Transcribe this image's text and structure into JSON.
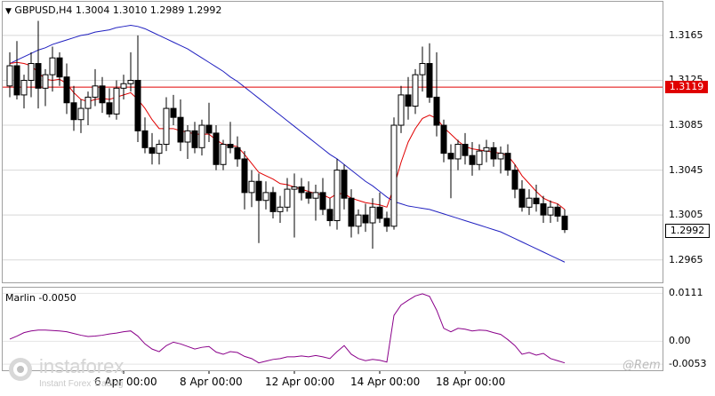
{
  "chart": {
    "symbol_header": "GBPUSD,H4  1.3004 1.3010 1.2989 1.2992",
    "indicator_header": "Marlin -0.0050",
    "price_axis": [
      "1.3165",
      "1.3125",
      "1.3085",
      "1.3045",
      "1.3005",
      "1.2965"
    ],
    "indicator_axis": [
      "0.0111",
      "0.00",
      "-0.0053"
    ],
    "current_price": "1.2992",
    "level_price": "1.3119",
    "date_labels": [
      "6 Apr 00:00",
      "8 Apr 00:00",
      "12 Apr 00:00",
      "14 Apr 00:00",
      "18 Apr 00:00"
    ],
    "colors": {
      "level": "#e00000",
      "ma_slow": "#2020c0",
      "ma_fast": "#e00000",
      "oscillator": "#8a008a",
      "bull": "#ffffff",
      "bear": "#000000"
    }
  },
  "branding": {
    "logo_name": "instaforex",
    "logo_tagline": "Instant Forex Trading",
    "watermark": "@Rem"
  },
  "chart_data": {
    "type": "candlestick",
    "timeframe": "H4",
    "price_range": [
      1.2945,
      1.3195
    ],
    "candles": [
      [
        1.312,
        1.315,
        1.311,
        1.3138
      ],
      [
        1.3138,
        1.316,
        1.3108,
        1.3112
      ],
      [
        1.3112,
        1.313,
        1.31,
        1.3125
      ],
      [
        1.3125,
        1.315,
        1.311,
        1.314
      ],
      [
        1.314,
        1.3178,
        1.31,
        1.3118
      ],
      [
        1.3118,
        1.3135,
        1.3102,
        1.313
      ],
      [
        1.313,
        1.3155,
        1.3115,
        1.3145
      ],
      [
        1.3145,
        1.315,
        1.312,
        1.3128
      ],
      [
        1.3128,
        1.314,
        1.3095,
        1.3105
      ],
      [
        1.3105,
        1.312,
        1.308,
        1.309
      ],
      [
        1.309,
        1.3108,
        1.3078,
        1.31
      ],
      [
        1.31,
        1.3115,
        1.3085,
        1.311
      ],
      [
        1.311,
        1.3135,
        1.3102,
        1.312
      ],
      [
        1.312,
        1.3128,
        1.3096,
        1.3105
      ],
      [
        1.3105,
        1.3118,
        1.3092,
        1.3095
      ],
      [
        1.3095,
        1.3125,
        1.309,
        1.3118
      ],
      [
        1.3118,
        1.313,
        1.3108,
        1.3122
      ],
      [
        1.3122,
        1.315,
        1.3115,
        1.3125
      ],
      [
        1.3125,
        1.3165,
        1.307,
        1.308
      ],
      [
        1.308,
        1.3092,
        1.306,
        1.3065
      ],
      [
        1.3065,
        1.3078,
        1.305,
        1.306
      ],
      [
        1.306,
        1.3072,
        1.305,
        1.3068
      ],
      [
        1.3068,
        1.311,
        1.3062,
        1.31
      ],
      [
        1.31,
        1.3112,
        1.3085,
        1.3092
      ],
      [
        1.3092,
        1.3108,
        1.3062,
        1.307
      ],
      [
        1.307,
        1.3085,
        1.3055,
        1.308
      ],
      [
        1.308,
        1.3088,
        1.306,
        1.3065
      ],
      [
        1.3065,
        1.309,
        1.3058,
        1.3085
      ],
      [
        1.3085,
        1.3105,
        1.307,
        1.3078
      ],
      [
        1.3078,
        1.3085,
        1.3045,
        1.305
      ],
      [
        1.305,
        1.3072,
        1.3045,
        1.3068
      ],
      [
        1.3068,
        1.3088,
        1.306,
        1.3065
      ],
      [
        1.3065,
        1.3075,
        1.3048,
        1.3055
      ],
      [
        1.3055,
        1.3062,
        1.301,
        1.3025
      ],
      [
        1.3025,
        1.3045,
        1.3012,
        1.3035
      ],
      [
        1.3035,
        1.3042,
        1.298,
        1.3018
      ],
      [
        1.3018,
        1.3035,
        1.301,
        1.3025
      ],
      [
        1.3025,
        1.303,
        1.3002,
        1.3008
      ],
      [
        1.3008,
        1.3022,
        1.2998,
        1.3012
      ],
      [
        1.3012,
        1.3038,
        1.3008,
        1.3028
      ],
      [
        1.3028,
        1.3042,
        1.2985,
        1.303
      ],
      [
        1.303,
        1.3038,
        1.3018,
        1.3025
      ],
      [
        1.3025,
        1.3035,
        1.3015,
        1.302
      ],
      [
        1.302,
        1.3032,
        1.3,
        1.3025
      ],
      [
        1.3025,
        1.3038,
        1.3005,
        1.301
      ],
      [
        1.301,
        1.302,
        1.2995,
        1.3
      ],
      [
        1.3,
        1.3055,
        1.2992,
        1.3045
      ],
      [
        1.3045,
        1.305,
        1.301,
        1.302
      ],
      [
        1.302,
        1.3028,
        1.2985,
        1.2995
      ],
      [
        1.2995,
        1.301,
        1.2988,
        1.3005
      ],
      [
        1.3005,
        1.3015,
        1.299,
        1.2998
      ],
      [
        1.2998,
        1.302,
        1.2975,
        1.3012
      ],
      [
        1.3012,
        1.3025,
        1.2998,
        1.3002
      ],
      [
        1.3002,
        1.3008,
        1.299,
        1.2995
      ],
      [
        1.2995,
        1.3092,
        1.2992,
        1.3085
      ],
      [
        1.3085,
        1.312,
        1.3078,
        1.3112
      ],
      [
        1.3112,
        1.3128,
        1.309,
        1.3102
      ],
      [
        1.3102,
        1.3135,
        1.3095,
        1.313
      ],
      [
        1.313,
        1.3155,
        1.3115,
        1.314
      ],
      [
        1.314,
        1.3158,
        1.3105,
        1.311
      ],
      [
        1.311,
        1.315,
        1.3075,
        1.3085
      ],
      [
        1.3085,
        1.309,
        1.3052,
        1.306
      ],
      [
        1.306,
        1.3068,
        1.302,
        1.3055
      ],
      [
        1.3055,
        1.3072,
        1.3045,
        1.3068
      ],
      [
        1.3068,
        1.3078,
        1.305,
        1.3058
      ],
      [
        1.3058,
        1.307,
        1.304,
        1.305
      ],
      [
        1.305,
        1.3068,
        1.3045,
        1.3062
      ],
      [
        1.3062,
        1.3072,
        1.3052,
        1.3065
      ],
      [
        1.3065,
        1.307,
        1.3048,
        1.3055
      ],
      [
        1.3055,
        1.3066,
        1.3042,
        1.306
      ],
      [
        1.306,
        1.3068,
        1.304,
        1.3045
      ],
      [
        1.3045,
        1.305,
        1.302,
        1.3028
      ],
      [
        1.3028,
        1.3036,
        1.3008,
        1.3012
      ],
      [
        1.3012,
        1.3028,
        1.3005,
        1.302
      ],
      [
        1.302,
        1.3032,
        1.3008,
        1.3015
      ],
      [
        1.3015,
        1.3022,
        1.2998,
        1.3005
      ],
      [
        1.3005,
        1.3018,
        1.2998,
        1.3012
      ],
      [
        1.3012,
        1.3015,
        1.2999,
        1.3004
      ],
      [
        1.3004,
        1.301,
        1.2989,
        1.2992
      ]
    ],
    "ma_slow": [
      1.314,
      1.3143,
      1.3146,
      1.3149,
      1.3152,
      1.3154,
      1.3157,
      1.3159,
      1.3161,
      1.3163,
      1.3165,
      1.3166,
      1.3168,
      1.3169,
      1.317,
      1.3172,
      1.3173,
      1.3174,
      1.3173,
      1.3171,
      1.3168,
      1.3165,
      1.3162,
      1.3159,
      1.3156,
      1.3153,
      1.3149,
      1.3145,
      1.3141,
      1.3137,
      1.3133,
      1.3128,
      1.3124,
      1.3119,
      1.3114,
      1.3109,
      1.3104,
      1.3099,
      1.3094,
      1.3089,
      1.3084,
      1.3079,
      1.3074,
      1.3069,
      1.3064,
      1.3059,
      1.3055,
      1.305,
      1.3045,
      1.304,
      1.3035,
      1.3031,
      1.3026,
      1.3021,
      1.3017,
      1.3015,
      1.3013,
      1.3012,
      1.3011,
      1.301,
      1.3008,
      1.3006,
      1.3004,
      1.3002,
      1.3,
      1.2998,
      1.2996,
      1.2994,
      1.2992,
      1.299,
      1.2987,
      1.2984,
      1.2981,
      1.2978,
      1.2975,
      1.2972,
      1.2969,
      1.2966,
      1.2963
    ],
    "ma_fast": [
      1.314,
      1.3141,
      1.314,
      1.3138,
      1.3132,
      1.3126,
      1.3125,
      1.3126,
      1.3122,
      1.3114,
      1.3108,
      1.3106,
      1.3108,
      1.3109,
      1.3108,
      1.311,
      1.3112,
      1.3114,
      1.3108,
      1.31,
      1.309,
      1.3082,
      1.3082,
      1.3082,
      1.308,
      1.3079,
      1.3077,
      1.3077,
      1.3077,
      1.3072,
      1.3068,
      1.3067,
      1.3066,
      1.3059,
      1.3051,
      1.3043,
      1.304,
      1.3037,
      1.3033,
      1.3032,
      1.303,
      1.3028,
      1.3026,
      1.3024,
      1.3023,
      1.302,
      1.3024,
      1.3024,
      1.302,
      1.3018,
      1.3016,
      1.3015,
      1.3014,
      1.3012,
      1.303,
      1.3052,
      1.307,
      1.3082,
      1.3091,
      1.3094,
      1.3091,
      1.3083,
      1.3077,
      1.3071,
      1.3066,
      1.3064,
      1.3063,
      1.3062,
      1.3061,
      1.306,
      1.3058,
      1.305,
      1.304,
      1.3033,
      1.3026,
      1.302,
      1.3017,
      1.3015,
      1.301
    ],
    "oscillator_range": [
      -0.0065,
      0.012
    ],
    "oscillator": [
      0.0005,
      0.0012,
      0.002,
      0.0024,
      0.0026,
      0.0026,
      0.0025,
      0.0024,
      0.0022,
      0.0018,
      0.0014,
      0.0011,
      0.0012,
      0.0014,
      0.0017,
      0.0019,
      0.0022,
      0.0024,
      0.0012,
      -0.0006,
      -0.0018,
      -0.0024,
      -0.001,
      -0.0002,
      -0.0006,
      -0.0012,
      -0.0018,
      -0.0014,
      -0.0012,
      -0.0025,
      -0.003,
      -0.0024,
      -0.0026,
      -0.0035,
      -0.004,
      -0.005,
      -0.0046,
      -0.0042,
      -0.004,
      -0.0036,
      -0.0036,
      -0.0034,
      -0.0036,
      -0.0033,
      -0.0036,
      -0.004,
      -0.0024,
      -0.001,
      -0.003,
      -0.004,
      -0.0045,
      -0.0042,
      -0.0044,
      -0.0048,
      0.006,
      0.0084,
      0.0095,
      0.0105,
      0.011,
      0.0104,
      0.0072,
      0.003,
      0.0022,
      0.003,
      0.0028,
      0.0024,
      0.0026,
      0.0025,
      0.002,
      0.0016,
      0.0004,
      -0.001,
      -0.003,
      -0.0026,
      -0.0032,
      -0.0028,
      -0.004,
      -0.0045,
      -0.005
    ]
  }
}
